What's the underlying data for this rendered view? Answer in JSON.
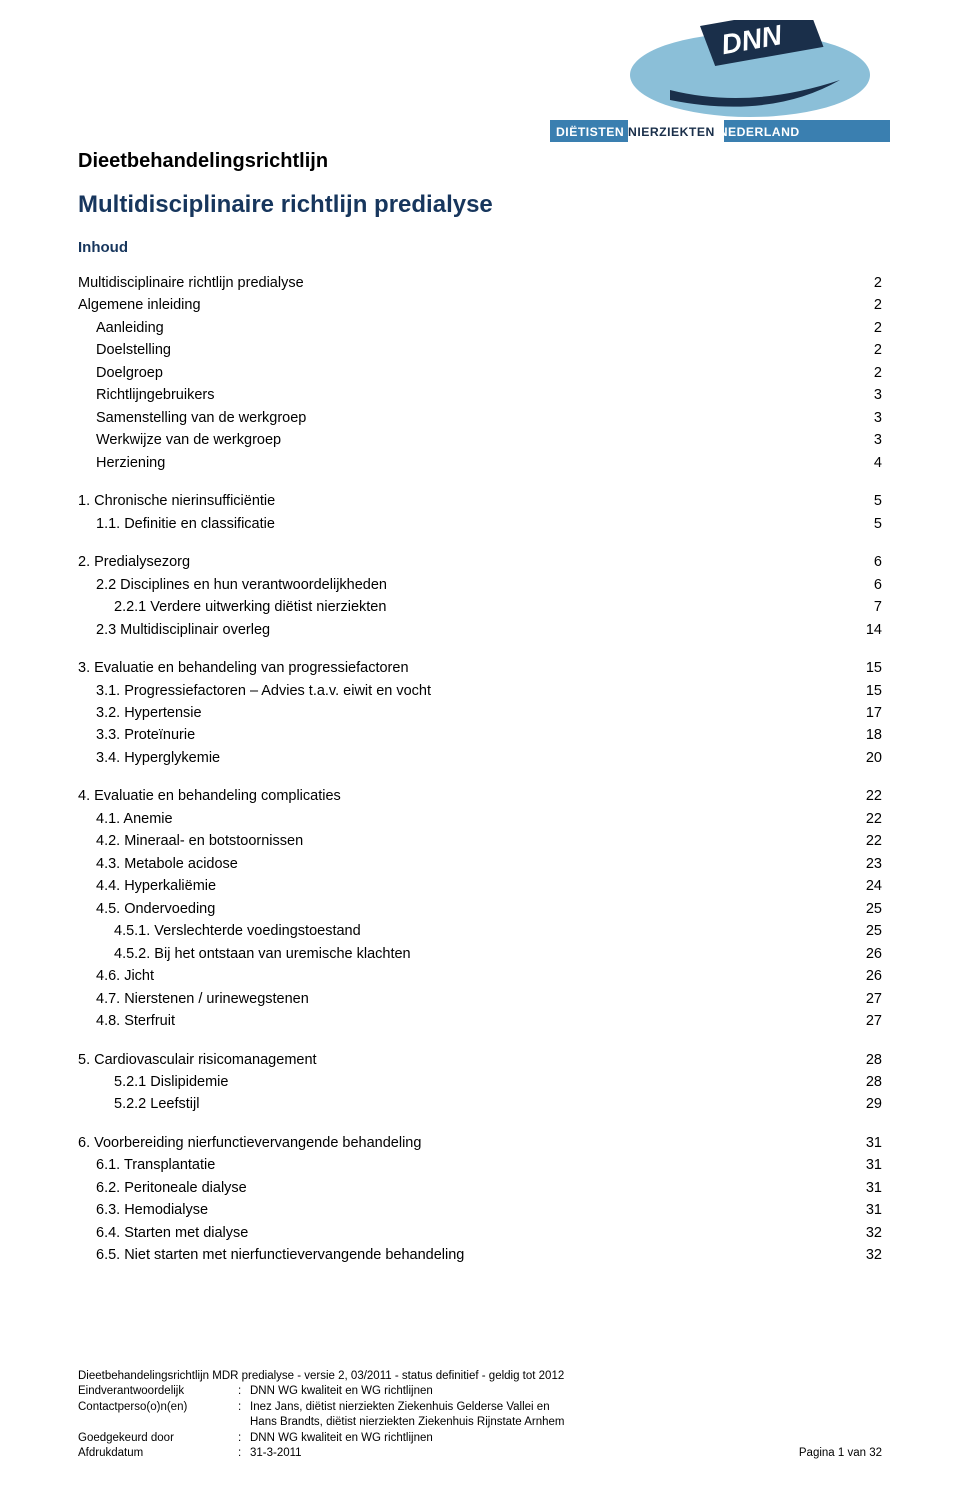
{
  "logo": {
    "top_text": "DNN",
    "banner_text": "DIËTISTEN NIERZIEKTEN NEDERLAND",
    "ellipse_color": "#8bbfd8",
    "dark_color": "#1a2f4a",
    "banner_blue": "#3a7fb0",
    "banner_white": "#ffffff"
  },
  "headings": {
    "h1": "Dieetbehandelingsrichtlijn",
    "h2": "Multidisciplinaire richtlijn predialyse",
    "h3": "Inhoud"
  },
  "toc": [
    {
      "items": [
        {
          "label": "Multidisciplinaire richtlijn predialyse",
          "page": "2",
          "indent": 0
        },
        {
          "label": "Algemene inleiding",
          "page": "2",
          "indent": 0
        },
        {
          "label": "Aanleiding",
          "page": "2",
          "indent": 1
        },
        {
          "label": "Doelstelling",
          "page": "2",
          "indent": 1
        },
        {
          "label": "Doelgroep",
          "page": "2",
          "indent": 1
        },
        {
          "label": "Richtlijngebruikers",
          "page": "3",
          "indent": 1
        },
        {
          "label": "Samenstelling van de werkgroep",
          "page": "3",
          "indent": 1
        },
        {
          "label": "Werkwijze van de werkgroep",
          "page": "3",
          "indent": 1
        },
        {
          "label": "Herziening",
          "page": "4",
          "indent": 1
        }
      ]
    },
    {
      "items": [
        {
          "label": "1.  Chronische nierinsufficiëntie",
          "page": "5",
          "indent": 0
        },
        {
          "label": "1.1. Definitie en classificatie",
          "page": "5",
          "indent": 1
        }
      ]
    },
    {
      "items": [
        {
          "label": "2.  Predialysezorg",
          "page": "6",
          "indent": 0
        },
        {
          "label": "2.2  Disciplines en hun verantwoordelijkheden",
          "page": "6",
          "indent": 1
        },
        {
          "label": "2.2.1 Verdere uitwerking diëtist nierziekten",
          "page": "7",
          "indent": 2
        },
        {
          "label": "2.3  Multidisciplinair overleg",
          "page": "14",
          "indent": 1
        }
      ]
    },
    {
      "items": [
        {
          "label": "3.  Evaluatie en behandeling van progressiefactoren",
          "page": "15",
          "indent": 0
        },
        {
          "label": "3.1. Progressiefactoren – Advies t.a.v. eiwit en vocht",
          "page": "15",
          "indent": 1
        },
        {
          "label": "3.2. Hypertensie",
          "page": "17",
          "indent": 1
        },
        {
          "label": "3.3. Proteïnurie",
          "page": "18",
          "indent": 1
        },
        {
          "label": "3.4. Hyperglykemie",
          "page": "20",
          "indent": 1
        }
      ]
    },
    {
      "items": [
        {
          "label": "4.  Evaluatie en behandeling complicaties",
          "page": "22",
          "indent": 0
        },
        {
          "label": "4.1. Anemie",
          "page": "22",
          "indent": 1
        },
        {
          "label": "4.2. Mineraal- en botstoornissen",
          "page": "22",
          "indent": 1
        },
        {
          "label": "4.3. Metabole acidose",
          "page": "23",
          "indent": 1
        },
        {
          "label": "4.4. Hyperkaliëmie",
          "page": "24",
          "indent": 1
        },
        {
          "label": "4.5. Ondervoeding",
          "page": "25",
          "indent": 1
        },
        {
          "label": "4.5.1.  Verslechterde voedingstoestand",
          "page": "25",
          "indent": 2
        },
        {
          "label": "4.5.2.  Bij het ontstaan van uremische klachten",
          "page": "26",
          "indent": 2
        },
        {
          "label": "4.6. Jicht",
          "page": "26",
          "indent": 1
        },
        {
          "label": "4.7. Nierstenen / urinewegstenen",
          "page": "27",
          "indent": 1
        },
        {
          "label": "4.8. Sterfruit",
          "page": "27",
          "indent": 1
        }
      ]
    },
    {
      "items": [
        {
          "label": "5.  Cardiovasculair risicomanagement",
          "page": "28",
          "indent": 0
        },
        {
          "label": "5.2.1   Dislipidemie",
          "page": "28",
          "indent": 2
        },
        {
          "label": "5.2.2   Leefstijl",
          "page": "29",
          "indent": 2
        }
      ]
    },
    {
      "items": [
        {
          "label": "6.  Voorbereiding nierfunctievervangende behandeling",
          "page": "31",
          "indent": 0
        },
        {
          "label": "6.1. Transplantatie",
          "page": "31",
          "indent": 1
        },
        {
          "label": "6.2. Peritoneale dialyse",
          "page": "31",
          "indent": 1
        },
        {
          "label": "6.3. Hemodialyse",
          "page": "31",
          "indent": 1
        },
        {
          "label": "6.4. Starten met dialyse",
          "page": "32",
          "indent": 1
        },
        {
          "label": "6.5. Niet starten met nierfunctievervangende behandeling",
          "page": "32",
          "indent": 1
        }
      ]
    }
  ],
  "footer": {
    "line1": "Dieetbehandelingsrichtlijn MDR predialyse - versie 2, 03/2011 - status definitief - geldig tot 2012",
    "rows": [
      {
        "key": "Eindverantwoordelijk",
        "val": "DNN WG kwaliteit en WG richtlijnen"
      },
      {
        "key": "Contactperso(o)n(en)",
        "val": "Inez Jans, diëtist nierziekten Ziekenhuis Gelderse Vallei en"
      },
      {
        "key": "",
        "val": "Hans Brandts, diëtist nierziekten Ziekenhuis Rijnstate Arnhem"
      },
      {
        "key": "Goedgekeurd door",
        "val": "DNN WG kwaliteit en WG richtlijnen"
      }
    ],
    "date_key": "Afdrukdatum",
    "date_val": "31-3-2011",
    "page_info": "Pagina 1 van 32"
  }
}
